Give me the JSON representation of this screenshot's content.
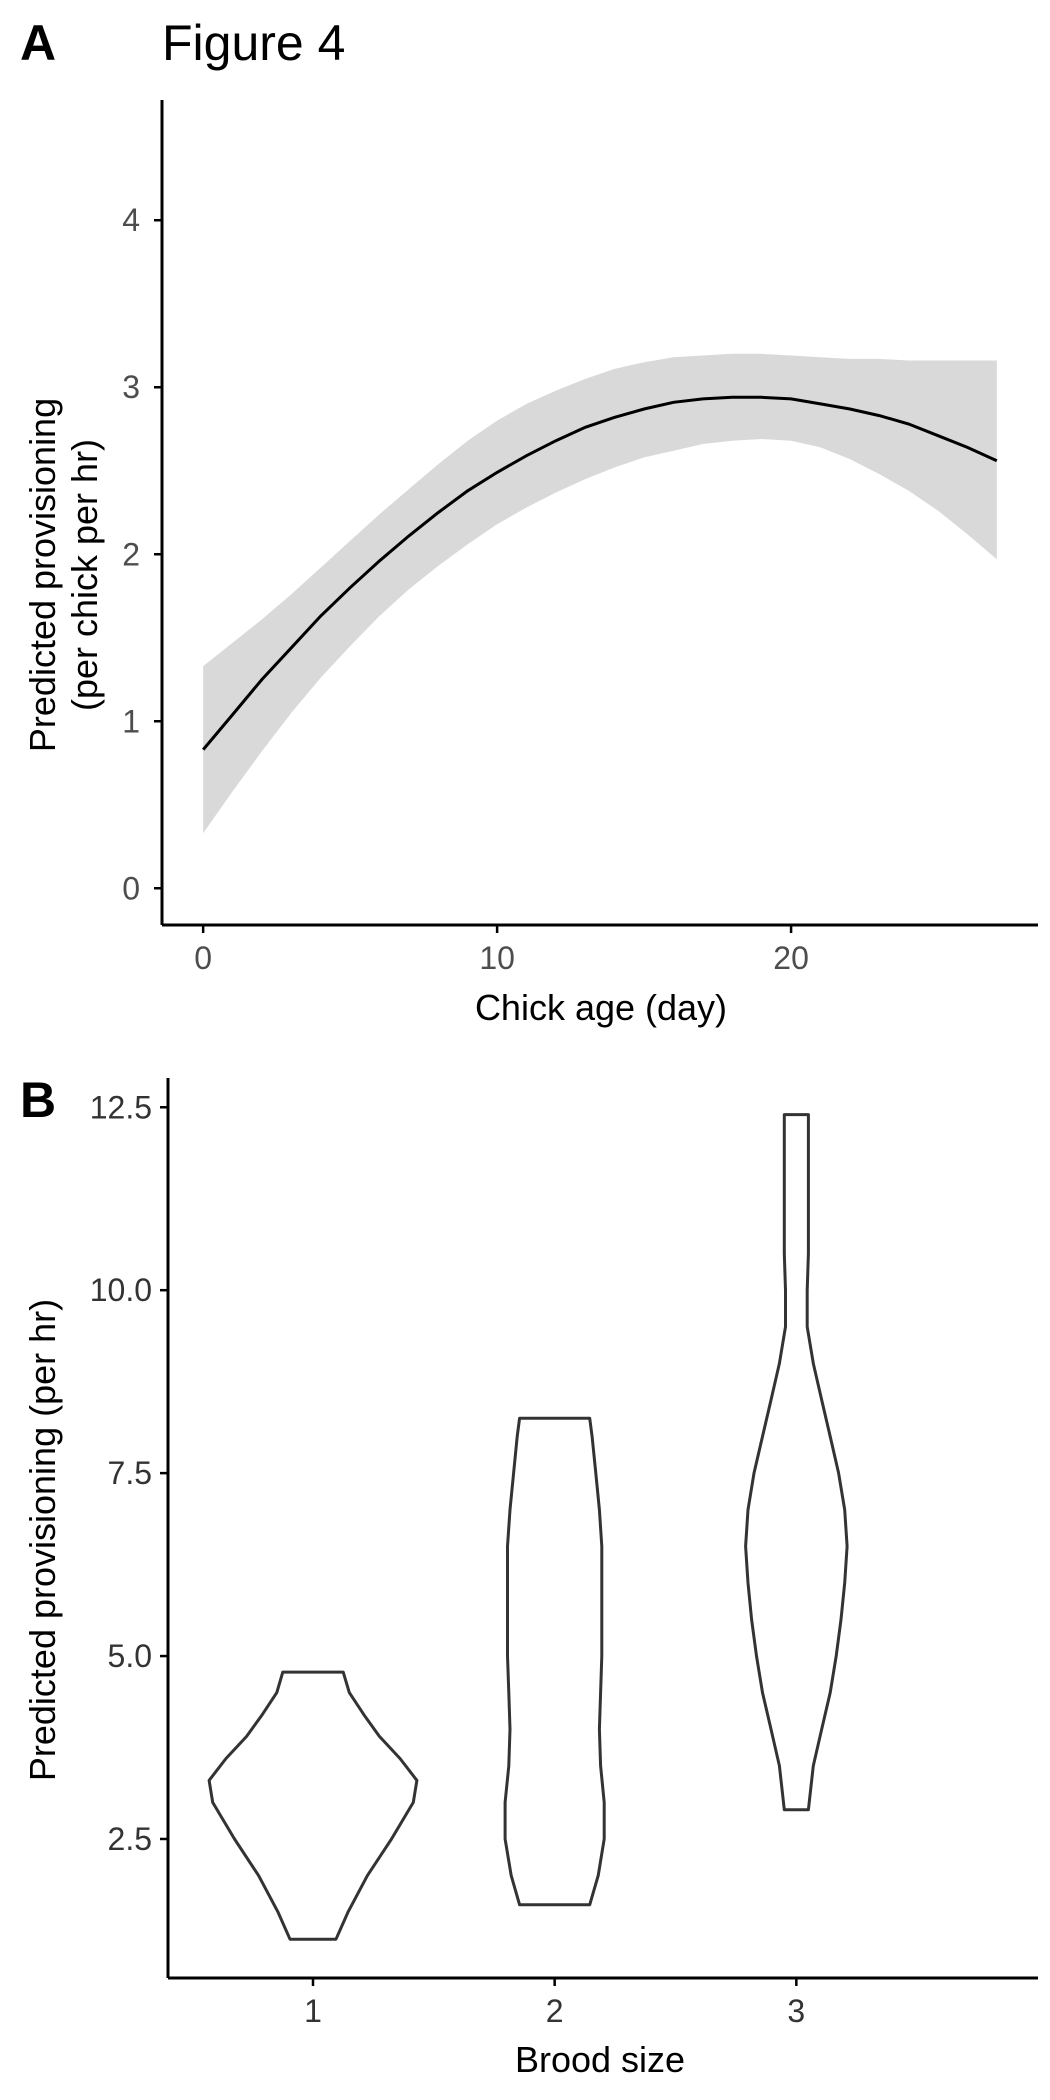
{
  "figure_title": "Figure 4",
  "panels": [
    {
      "label": "A"
    },
    {
      "label": "B"
    }
  ],
  "colors": {
    "line": "#000000",
    "ribbon": "#d9d9d9",
    "violin_stroke": "#333333",
    "axis": "#000000",
    "tick_text_a": "#4d4d4d",
    "tick_text_b": "#333333"
  },
  "chart_data": [
    {
      "type": "line",
      "title": "",
      "xlabel": "Chick age (day)",
      "ylabel": [
        "Predicted provisioning",
        "(per chick per hr)"
      ],
      "xlim": [
        -1.4,
        28.4
      ],
      "ylim": [
        -0.22,
        4.72
      ],
      "xticks": [
        0,
        10,
        20
      ],
      "yticks": [
        0,
        1,
        2,
        3,
        4
      ],
      "grid": false,
      "legend": "none",
      "x": [
        0,
        1,
        2,
        3,
        4,
        5,
        6,
        7,
        8,
        9,
        10,
        11,
        12,
        13,
        14,
        15,
        16,
        17,
        18,
        19,
        20,
        21,
        22,
        23,
        24,
        25,
        26,
        27
      ],
      "series": [
        {
          "values": [
            0.83,
            1.04,
            1.25,
            1.44,
            1.63,
            1.8,
            1.96,
            2.11,
            2.25,
            2.38,
            2.49,
            2.59,
            2.68,
            2.76,
            2.82,
            2.87,
            2.91,
            2.93,
            2.94,
            2.94,
            2.93,
            2.9,
            2.87,
            2.83,
            2.78,
            2.71,
            2.64,
            2.56
          ],
          "lower": [
            0.33,
            0.58,
            0.82,
            1.05,
            1.26,
            1.45,
            1.63,
            1.79,
            1.93,
            2.06,
            2.18,
            2.28,
            2.37,
            2.45,
            2.52,
            2.58,
            2.62,
            2.66,
            2.68,
            2.69,
            2.68,
            2.64,
            2.57,
            2.48,
            2.38,
            2.26,
            2.12,
            1.97
          ],
          "upper": [
            1.33,
            1.47,
            1.61,
            1.76,
            1.92,
            2.08,
            2.24,
            2.39,
            2.54,
            2.68,
            2.8,
            2.9,
            2.98,
            3.05,
            3.11,
            3.15,
            3.18,
            3.19,
            3.2,
            3.2,
            3.19,
            3.18,
            3.17,
            3.17,
            3.16,
            3.16,
            3.16,
            3.16
          ]
        }
      ]
    },
    {
      "type": "violin",
      "title": "",
      "xlabel": "Brood size",
      "ylabel": "Predicted provisioning (per hr)",
      "categories": [
        "1",
        "2",
        "3"
      ],
      "ylim": [
        0.6,
        12.9
      ],
      "yticks": [
        2.5,
        5.0,
        7.5,
        10.0,
        12.5
      ],
      "ytick_labels": [
        "2.5",
        "5.0",
        "7.5",
        "10.0",
        "12.5"
      ],
      "grid": false,
      "legend": "none",
      "series": [
        {
          "category": "1",
          "min": 1.13,
          "max": 4.78,
          "density": [
            [
              1.13,
              0.19
            ],
            [
              1.5,
              0.29
            ],
            [
              2.0,
              0.45
            ],
            [
              2.5,
              0.65
            ],
            [
              3.0,
              0.83
            ],
            [
              3.3,
              0.86
            ],
            [
              3.6,
              0.72
            ],
            [
              3.9,
              0.55
            ],
            [
              4.2,
              0.42
            ],
            [
              4.5,
              0.3
            ],
            [
              4.78,
              0.25
            ]
          ]
        },
        {
          "category": "2",
          "min": 1.6,
          "max": 8.25,
          "density": [
            [
              1.6,
              0.29
            ],
            [
              2.0,
              0.36
            ],
            [
              2.5,
              0.41
            ],
            [
              3.0,
              0.41
            ],
            [
              3.5,
              0.38
            ],
            [
              4.0,
              0.37
            ],
            [
              4.5,
              0.38
            ],
            [
              5.0,
              0.39
            ],
            [
              5.5,
              0.39
            ],
            [
              6.0,
              0.39
            ],
            [
              6.5,
              0.39
            ],
            [
              7.0,
              0.37
            ],
            [
              7.5,
              0.34
            ],
            [
              8.0,
              0.31
            ],
            [
              8.25,
              0.29
            ]
          ]
        },
        {
          "category": "3",
          "min": 2.9,
          "max": 12.4,
          "density": [
            [
              2.9,
              0.1
            ],
            [
              3.5,
              0.14
            ],
            [
              4.0,
              0.21
            ],
            [
              4.5,
              0.28
            ],
            [
              5.0,
              0.33
            ],
            [
              5.5,
              0.37
            ],
            [
              6.0,
              0.4
            ],
            [
              6.5,
              0.42
            ],
            [
              7.0,
              0.4
            ],
            [
              7.5,
              0.35
            ],
            [
              8.0,
              0.28
            ],
            [
              8.5,
              0.21
            ],
            [
              9.0,
              0.14
            ],
            [
              9.5,
              0.09
            ],
            [
              10.0,
              0.09
            ],
            [
              10.5,
              0.1
            ],
            [
              11.0,
              0.1
            ],
            [
              11.5,
              0.1
            ],
            [
              12.0,
              0.1
            ],
            [
              12.4,
              0.1
            ]
          ]
        }
      ]
    }
  ]
}
